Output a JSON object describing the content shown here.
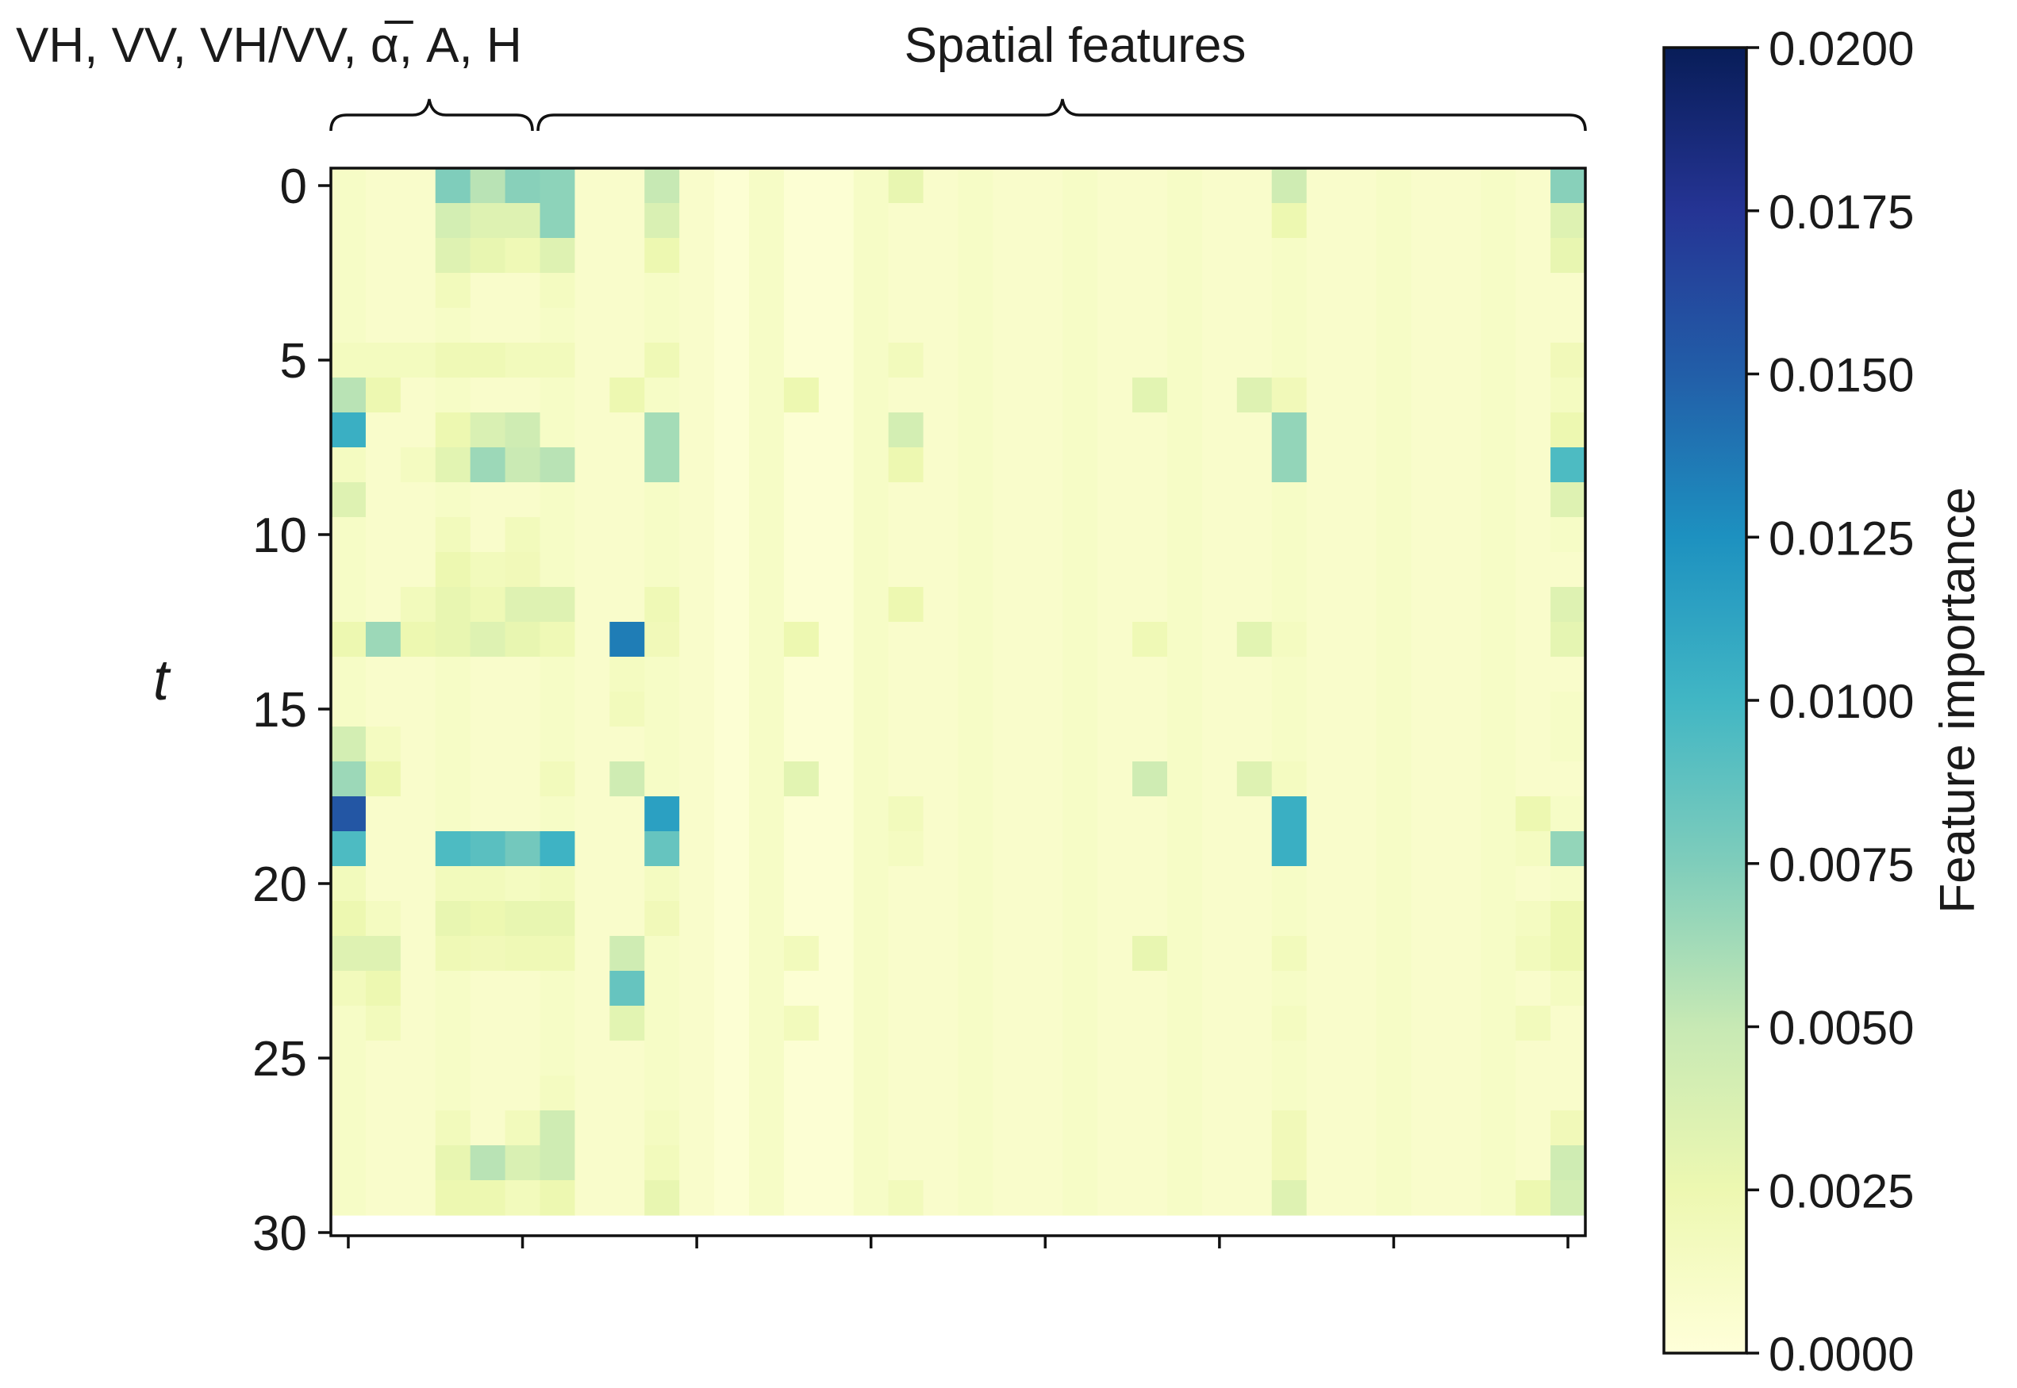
{
  "chart_data": {
    "type": "heatmap",
    "title": "",
    "xlabel": "",
    "ylabel": "t",
    "n_rows": 30,
    "n_cols": 36,
    "ylim": [
      0,
      30
    ],
    "y_ticks": [
      0,
      5,
      10,
      15,
      20,
      25,
      30
    ],
    "y_tick_labels": [
      "0",
      "5",
      "10",
      "15",
      "20",
      "25",
      "30"
    ],
    "x_tick_positions": [
      0,
      5,
      10,
      15,
      20,
      25,
      30,
      35
    ],
    "x_tick_labels": [
      "",
      "",
      "",
      "",
      "",
      "",
      "",
      ""
    ],
    "group_labels": {
      "polarimetric": "VH, VV, VH/VV, α̅, A, H",
      "spatial": "Spatial features"
    },
    "group_ranges": {
      "polarimetric": [
        0,
        5
      ],
      "spatial": [
        6,
        35
      ]
    },
    "colorbar": {
      "label": "Feature importance",
      "min": 0.0,
      "max": 0.02,
      "ticks": [
        0.0,
        0.0025,
        0.005,
        0.0075,
        0.01,
        0.0125,
        0.015,
        0.0175,
        0.02
      ],
      "tick_labels": [
        "0.0000",
        "0.0025",
        "0.0050",
        "0.0075",
        "0.0100",
        "0.0125",
        "0.0150",
        "0.0175",
        "0.0200"
      ],
      "colormap": "YlGnBu",
      "colormap_stops": [
        "#ffffd9",
        "#edf8b1",
        "#c7e9b4",
        "#7fcdbb",
        "#41b6c4",
        "#1d91c0",
        "#225ea8",
        "#253494",
        "#081d58"
      ]
    },
    "background_value": 0.0008,
    "cells": [
      [
        0,
        3,
        0.0075
      ],
      [
        0,
        4,
        0.0055
      ],
      [
        0,
        5,
        0.0072
      ],
      [
        0,
        6,
        0.007
      ],
      [
        0,
        9,
        0.005
      ],
      [
        0,
        16,
        0.0028
      ],
      [
        0,
        27,
        0.0045
      ],
      [
        0,
        35,
        0.0072
      ],
      [
        1,
        3,
        0.0042
      ],
      [
        1,
        4,
        0.0035
      ],
      [
        1,
        5,
        0.0035
      ],
      [
        1,
        6,
        0.007
      ],
      [
        1,
        9,
        0.0038
      ],
      [
        1,
        27,
        0.0025
      ],
      [
        1,
        35,
        0.0035
      ],
      [
        2,
        3,
        0.0035
      ],
      [
        2,
        4,
        0.0028
      ],
      [
        2,
        5,
        0.0022
      ],
      [
        2,
        6,
        0.0035
      ],
      [
        2,
        9,
        0.0025
      ],
      [
        2,
        35,
        0.0028
      ],
      [
        3,
        0,
        0.0012
      ],
      [
        3,
        3,
        0.0018
      ],
      [
        3,
        6,
        0.0015
      ],
      [
        5,
        0,
        0.0016
      ],
      [
        5,
        1,
        0.0016
      ],
      [
        5,
        2,
        0.0016
      ],
      [
        5,
        3,
        0.0022
      ],
      [
        5,
        4,
        0.0022
      ],
      [
        5,
        5,
        0.0018
      ],
      [
        5,
        6,
        0.0018
      ],
      [
        5,
        9,
        0.0022
      ],
      [
        5,
        16,
        0.0018
      ],
      [
        5,
        35,
        0.002
      ],
      [
        6,
        0,
        0.0055
      ],
      [
        6,
        1,
        0.0025
      ],
      [
        6,
        8,
        0.0025
      ],
      [
        6,
        13,
        0.0025
      ],
      [
        6,
        23,
        0.0032
      ],
      [
        6,
        26,
        0.0035
      ],
      [
        6,
        27,
        0.002
      ],
      [
        6,
        35,
        0.0015
      ],
      [
        7,
        0,
        0.0105
      ],
      [
        7,
        3,
        0.0025
      ],
      [
        7,
        4,
        0.0038
      ],
      [
        7,
        5,
        0.0045
      ],
      [
        7,
        9,
        0.0062
      ],
      [
        7,
        16,
        0.0042
      ],
      [
        7,
        27,
        0.0068
      ],
      [
        7,
        35,
        0.0025
      ],
      [
        8,
        0,
        0.0015
      ],
      [
        8,
        2,
        0.0015
      ],
      [
        8,
        3,
        0.0032
      ],
      [
        8,
        4,
        0.0065
      ],
      [
        8,
        5,
        0.0048
      ],
      [
        8,
        6,
        0.0055
      ],
      [
        8,
        9,
        0.0062
      ],
      [
        8,
        16,
        0.0025
      ],
      [
        8,
        27,
        0.0068
      ],
      [
        8,
        35,
        0.0095
      ],
      [
        9,
        0,
        0.0035
      ],
      [
        9,
        27,
        0.0012
      ],
      [
        9,
        35,
        0.0035
      ],
      [
        10,
        3,
        0.0018
      ],
      [
        10,
        5,
        0.0018
      ],
      [
        10,
        35,
        0.0012
      ],
      [
        11,
        3,
        0.0025
      ],
      [
        11,
        4,
        0.0018
      ],
      [
        11,
        5,
        0.002
      ],
      [
        12,
        2,
        0.0018
      ],
      [
        12,
        3,
        0.0028
      ],
      [
        12,
        4,
        0.0022
      ],
      [
        12,
        5,
        0.0035
      ],
      [
        12,
        6,
        0.0035
      ],
      [
        12,
        9,
        0.0022
      ],
      [
        12,
        16,
        0.0025
      ],
      [
        12,
        35,
        0.0035
      ],
      [
        13,
        0,
        0.0025
      ],
      [
        13,
        1,
        0.0065
      ],
      [
        13,
        2,
        0.0025
      ],
      [
        13,
        3,
        0.0028
      ],
      [
        13,
        4,
        0.0035
      ],
      [
        13,
        5,
        0.0028
      ],
      [
        13,
        6,
        0.0022
      ],
      [
        13,
        8,
        0.0135
      ],
      [
        13,
        9,
        0.002
      ],
      [
        13,
        13,
        0.0025
      ],
      [
        13,
        23,
        0.0022
      ],
      [
        13,
        26,
        0.0032
      ],
      [
        13,
        27,
        0.0015
      ],
      [
        13,
        35,
        0.003
      ],
      [
        14,
        8,
        0.0015
      ],
      [
        15,
        8,
        0.0018
      ],
      [
        15,
        35,
        0.0012
      ],
      [
        16,
        0,
        0.0042
      ],
      [
        16,
        1,
        0.0015
      ],
      [
        16,
        35,
        0.0012
      ],
      [
        17,
        0,
        0.0065
      ],
      [
        17,
        1,
        0.0025
      ],
      [
        17,
        6,
        0.0018
      ],
      [
        17,
        8,
        0.0045
      ],
      [
        17,
        13,
        0.0032
      ],
      [
        17,
        23,
        0.0045
      ],
      [
        17,
        26,
        0.0035
      ],
      [
        17,
        27,
        0.0015
      ],
      [
        18,
        0,
        0.0155
      ],
      [
        18,
        9,
        0.0115
      ],
      [
        18,
        16,
        0.0018
      ],
      [
        18,
        27,
        0.0105
      ],
      [
        18,
        34,
        0.0025
      ],
      [
        18,
        35,
        0.0012
      ],
      [
        19,
        0,
        0.0095
      ],
      [
        19,
        3,
        0.0095
      ],
      [
        19,
        4,
        0.009
      ],
      [
        19,
        5,
        0.008
      ],
      [
        19,
        6,
        0.0102
      ],
      [
        19,
        9,
        0.0085
      ],
      [
        19,
        16,
        0.0015
      ],
      [
        19,
        27,
        0.0105
      ],
      [
        19,
        34,
        0.0015
      ],
      [
        19,
        35,
        0.0068
      ],
      [
        20,
        0,
        0.0018
      ],
      [
        20,
        3,
        0.0018
      ],
      [
        20,
        4,
        0.0018
      ],
      [
        20,
        5,
        0.0015
      ],
      [
        20,
        6,
        0.0018
      ],
      [
        20,
        9,
        0.0015
      ],
      [
        20,
        35,
        0.0012
      ],
      [
        21,
        0,
        0.0025
      ],
      [
        21,
        1,
        0.0015
      ],
      [
        21,
        3,
        0.0028
      ],
      [
        21,
        4,
        0.0025
      ],
      [
        21,
        5,
        0.0028
      ],
      [
        21,
        6,
        0.0028
      ],
      [
        21,
        9,
        0.002
      ],
      [
        21,
        34,
        0.0015
      ],
      [
        21,
        35,
        0.0025
      ],
      [
        22,
        0,
        0.0035
      ],
      [
        22,
        1,
        0.0035
      ],
      [
        22,
        3,
        0.0022
      ],
      [
        22,
        4,
        0.002
      ],
      [
        22,
        5,
        0.0022
      ],
      [
        22,
        6,
        0.0022
      ],
      [
        22,
        8,
        0.0045
      ],
      [
        22,
        13,
        0.0018
      ],
      [
        22,
        23,
        0.0028
      ],
      [
        22,
        27,
        0.0018
      ],
      [
        22,
        34,
        0.0018
      ],
      [
        22,
        35,
        0.0025
      ],
      [
        23,
        0,
        0.0018
      ],
      [
        23,
        1,
        0.0025
      ],
      [
        23,
        8,
        0.0085
      ],
      [
        23,
        35,
        0.0015
      ],
      [
        24,
        1,
        0.0018
      ],
      [
        24,
        8,
        0.0032
      ],
      [
        24,
        13,
        0.0018
      ],
      [
        24,
        27,
        0.0015
      ],
      [
        24,
        34,
        0.0018
      ],
      [
        26,
        6,
        0.0015
      ],
      [
        27,
        3,
        0.0018
      ],
      [
        27,
        5,
        0.0018
      ],
      [
        27,
        6,
        0.0045
      ],
      [
        27,
        9,
        0.0015
      ],
      [
        27,
        27,
        0.002
      ],
      [
        27,
        35,
        0.002
      ],
      [
        28,
        3,
        0.0028
      ],
      [
        28,
        4,
        0.0055
      ],
      [
        28,
        5,
        0.0038
      ],
      [
        28,
        6,
        0.0045
      ],
      [
        28,
        9,
        0.0018
      ],
      [
        28,
        27,
        0.002
      ],
      [
        28,
        35,
        0.0045
      ],
      [
        29,
        3,
        0.0025
      ],
      [
        29,
        4,
        0.0025
      ],
      [
        29,
        5,
        0.0018
      ],
      [
        29,
        6,
        0.0025
      ],
      [
        29,
        9,
        0.0028
      ],
      [
        29,
        16,
        0.0018
      ],
      [
        29,
        27,
        0.0035
      ],
      [
        29,
        34,
        0.0025
      ],
      [
        29,
        35,
        0.0042
      ]
    ]
  }
}
